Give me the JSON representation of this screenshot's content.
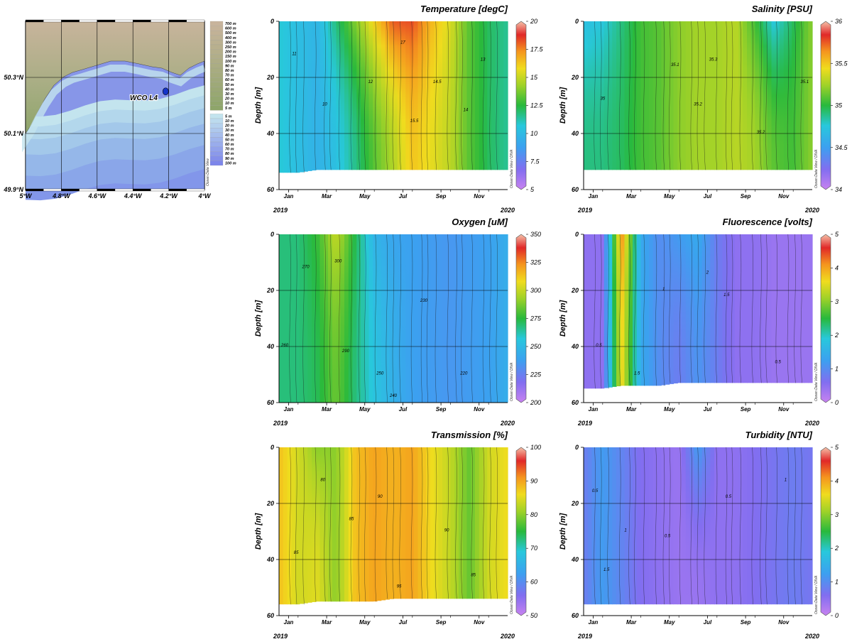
{
  "credit": "Ocean Data View",
  "map": {
    "lat_labels": [
      "50.3°N",
      "50.1°N",
      "49.9°N"
    ],
    "lon_labels": [
      "5°W",
      "4.8°W",
      "4.6°W",
      "4.4°W",
      "4.2°W",
      "4°W"
    ],
    "lat_values": [
      50.3,
      50.1,
      49.9
    ],
    "lon_values": [
      -5.0,
      -4.8,
      -4.6,
      -4.4,
      -4.2,
      -4.0
    ],
    "lat_range": [
      49.9,
      50.5
    ],
    "lon_range": [
      -5.0,
      -4.0
    ],
    "station": {
      "name": "WCO L4",
      "lon": -4.217,
      "lat": 50.25
    },
    "land_legend": [
      "700 m",
      "600 m",
      "500 m",
      "400 m",
      "300 m",
      "250 m",
      "200 m",
      "150 m",
      "100 m",
      "90 m",
      "80 m",
      "70 m",
      "60 m",
      "50 m",
      "40 m",
      "30 m",
      "20 m",
      "10 m",
      "5 m"
    ],
    "sea_legend": [
      "5 m",
      "10 m",
      "20 m",
      "30 m",
      "40 m",
      "50 m",
      "60 m",
      "70 m",
      "80 m",
      "90 m",
      "100 m"
    ],
    "colors": {
      "land_low": "#8ea56a",
      "land_high": "#c8b49c",
      "shelf": "#c3e4ee",
      "deep": "#7d86ea"
    }
  },
  "chart_data": [
    {
      "type": "heatmap",
      "title": "Temperature [degC]",
      "ylabel": "Depth [m]",
      "start_year": "2019",
      "end_year": "2020",
      "x_ticks": [
        "Jan",
        "Mar",
        "May",
        "Jul",
        "Sep",
        "Nov"
      ],
      "y_ticks": [
        "0",
        "20",
        "40",
        "60"
      ],
      "ylim": [
        60,
        0
      ],
      "colorbar": {
        "min": 5,
        "max": 20,
        "ticks": [
          "20",
          "17.5",
          "15",
          "12.5",
          "10",
          "7.5",
          "5"
        ]
      },
      "max_depth_by_month": [
        54,
        54,
        53,
        53,
        53,
        53,
        53,
        53,
        53,
        53,
        53,
        53,
        53
      ],
      "profile_by_month": [
        10.8,
        10.2,
        9.6,
        10.3,
        11.6,
        13.2,
        14.6,
        16.3,
        15.6,
        14.8,
        13.2,
        12.1,
        11.5
      ],
      "surface_bonus_by_month": [
        0,
        0,
        0.2,
        1.5,
        2.2,
        2.8,
        3.5,
        2.0,
        1.0,
        0.5,
        0,
        0,
        0
      ],
      "contour_labels": [
        {
          "m": 0.8,
          "d": 12,
          "v": "11"
        },
        {
          "m": 2.4,
          "d": 30,
          "v": "10"
        },
        {
          "m": 4.8,
          "d": 22,
          "v": "12"
        },
        {
          "m": 6.5,
          "d": 8,
          "v": "17"
        },
        {
          "m": 7.1,
          "d": 36,
          "v": "15.5"
        },
        {
          "m": 8.3,
          "d": 22,
          "v": "14.5"
        },
        {
          "m": 9.8,
          "d": 32,
          "v": "14"
        },
        {
          "m": 10.7,
          "d": 14,
          "v": "13"
        }
      ]
    },
    {
      "type": "heatmap",
      "title": "Salinity [PSU]",
      "ylabel": "Depth [m]",
      "start_year": "2019",
      "end_year": "2020",
      "x_ticks": [
        "Jan",
        "Mar",
        "May",
        "Jul",
        "Sep",
        "Nov"
      ],
      "y_ticks": [
        "0",
        "20",
        "40",
        "60"
      ],
      "ylim": [
        60,
        0
      ],
      "colorbar": {
        "min": 34,
        "max": 36,
        "ticks": [
          "36",
          "35.5",
          "35",
          "34.5",
          "34"
        ]
      },
      "max_depth_by_month": [
        53,
        53,
        53,
        53,
        53,
        53,
        53,
        53,
        53,
        53,
        53,
        53,
        53
      ],
      "profile_by_month": [
        34.9,
        34.9,
        34.95,
        35.05,
        35.1,
        35.2,
        35.25,
        35.25,
        35.3,
        35.25,
        35.1,
        35.05,
        35.2
      ],
      "surface_bonus_by_month": [
        -0.2,
        -0.15,
        -0.05,
        0,
        0,
        0,
        0,
        0,
        0,
        -0.2,
        -0.35,
        -0.1,
        0
      ],
      "contour_labels": [
        {
          "m": 1.0,
          "d": 28,
          "v": "35"
        },
        {
          "m": 4.8,
          "d": 16,
          "v": "35.1"
        },
        {
          "m": 6.0,
          "d": 30,
          "v": "35.2"
        },
        {
          "m": 6.8,
          "d": 14,
          "v": "35.3"
        },
        {
          "m": 9.3,
          "d": 40,
          "v": "35.2"
        },
        {
          "m": 11.6,
          "d": 22,
          "v": "35.1"
        }
      ]
    },
    {
      "type": "heatmap",
      "title": "Oxygen [uM]",
      "ylabel": "Depth [m]",
      "start_year": "2019",
      "end_year": "2020",
      "x_ticks": [
        "Jan",
        "Mar",
        "May",
        "Jul",
        "Sep",
        "Nov"
      ],
      "y_ticks": [
        "0",
        "20",
        "40",
        "60"
      ],
      "ylim": [
        60,
        0
      ],
      "colorbar": {
        "min": 200,
        "max": 350,
        "ticks": [
          "350",
          "325",
          "300",
          "275",
          "250",
          "225",
          "200"
        ]
      },
      "max_depth_by_month": [
        60,
        60,
        60,
        60,
        60,
        60,
        60,
        60,
        60,
        60,
        60,
        60,
        60
      ],
      "profile_by_month": [
        268,
        268,
        272,
        285,
        268,
        255,
        245,
        238,
        236,
        234,
        236,
        238,
        244
      ],
      "surface_bonus_by_month": [
        0,
        0,
        5,
        15,
        5,
        -8,
        -5,
        0,
        0,
        0,
        0,
        0,
        0
      ],
      "contour_labels": [
        {
          "m": 0.3,
          "d": 40,
          "v": "260"
        },
        {
          "m": 1.4,
          "d": 12,
          "v": "270"
        },
        {
          "m": 3.1,
          "d": 10,
          "v": "300"
        },
        {
          "m": 3.5,
          "d": 42,
          "v": "290"
        },
        {
          "m": 5.3,
          "d": 50,
          "v": "250"
        },
        {
          "m": 6.0,
          "d": 58,
          "v": "240"
        },
        {
          "m": 7.6,
          "d": 24,
          "v": "230"
        },
        {
          "m": 9.7,
          "d": 50,
          "v": "220"
        }
      ]
    },
    {
      "type": "heatmap",
      "title": "Fluorescence [volts]",
      "ylabel": "Depth [m]",
      "start_year": "2019",
      "end_year": "2020",
      "x_ticks": [
        "Jan",
        "Mar",
        "May",
        "Jul",
        "Sep",
        "Nov"
      ],
      "y_ticks": [
        "0",
        "20",
        "40",
        "60"
      ],
      "ylim": [
        60,
        0
      ],
      "colorbar": {
        "min": 0,
        "max": 5,
        "ticks": [
          "5",
          "4",
          "3",
          "2",
          "1",
          "0"
        ]
      },
      "max_depth_by_month": [
        55,
        55,
        54,
        54,
        54,
        53,
        53,
        53,
        53,
        53,
        53,
        53,
        53
      ],
      "profile_by_month": [
        0.5,
        0.5,
        3.6,
        1.4,
        1.0,
        0.8,
        1.1,
        0.8,
        0.5,
        0.5,
        0.4,
        0.4,
        0.4
      ],
      "surface_bonus_by_month": [
        0,
        0,
        0.5,
        0,
        0,
        0.4,
        0.3,
        0,
        0,
        0,
        0,
        0,
        0
      ],
      "contour_labels": [
        {
          "m": 0.8,
          "d": 40,
          "v": "0.5"
        },
        {
          "m": 2.8,
          "d": 50,
          "v": "1.5"
        },
        {
          "m": 4.2,
          "d": 20,
          "v": "1"
        },
        {
          "m": 6.5,
          "d": 14,
          "v": "2"
        },
        {
          "m": 7.5,
          "d": 22,
          "v": "1.5"
        },
        {
          "m": 10.2,
          "d": 46,
          "v": "0.5"
        }
      ]
    },
    {
      "type": "heatmap",
      "title": "Transmission [%]",
      "ylabel": "Depth [m]",
      "start_year": "2019",
      "end_year": "2020",
      "x_ticks": [
        "Jan",
        "Mar",
        "May",
        "Jul",
        "Sep",
        "Nov"
      ],
      "y_ticks": [
        "0",
        "20",
        "40",
        "60"
      ],
      "ylim": [
        60,
        0
      ],
      "colorbar": {
        "min": 50,
        "max": 100,
        "ticks": [
          "100",
          "90",
          "80",
          "70",
          "60",
          "50"
        ]
      },
      "max_depth_by_month": [
        56,
        56,
        55,
        55,
        55,
        55,
        54,
        54,
        54,
        54,
        54,
        54,
        54
      ],
      "profile_by_month": [
        88,
        84,
        85,
        80,
        88,
        90,
        89,
        90,
        86,
        83,
        78,
        84,
        86
      ],
      "surface_bonus_by_month": [
        0,
        0,
        -5,
        0,
        0,
        0,
        0,
        0,
        0,
        0,
        0,
        0,
        0
      ],
      "contour_labels": [
        {
          "m": 0.9,
          "d": 38,
          "v": "85"
        },
        {
          "m": 2.3,
          "d": 12,
          "v": "80"
        },
        {
          "m": 3.8,
          "d": 26,
          "v": "85"
        },
        {
          "m": 5.3,
          "d": 18,
          "v": "90"
        },
        {
          "m": 6.3,
          "d": 50,
          "v": "95"
        },
        {
          "m": 8.8,
          "d": 30,
          "v": "90"
        },
        {
          "m": 10.2,
          "d": 46,
          "v": "85"
        }
      ]
    },
    {
      "type": "heatmap",
      "title": "Turbidity [NTU]",
      "ylabel": "Depth [m]",
      "start_year": "2019",
      "end_year": "2020",
      "x_ticks": [
        "Jan",
        "Mar",
        "May",
        "Jul",
        "Sep",
        "Nov"
      ],
      "y_ticks": [
        "0",
        "20",
        "40",
        "60"
      ],
      "ylim": [
        60,
        0
      ],
      "colorbar": {
        "min": 0,
        "max": 5,
        "ticks": [
          "5",
          "4",
          "3",
          "2",
          "1",
          "0"
        ]
      },
      "max_depth_by_month": [
        56,
        56,
        56,
        56,
        56,
        56,
        56,
        56,
        56,
        56,
        56,
        56,
        56
      ],
      "profile_by_month": [
        0.8,
        1.2,
        0.9,
        0.6,
        0.5,
        0.4,
        0.4,
        0.5,
        0.5,
        0.6,
        0.7,
        0.8,
        0.7
      ],
      "surface_bonus_by_month": [
        0,
        0,
        0,
        0,
        0,
        0,
        0.8,
        0,
        0,
        0,
        0,
        0,
        0
      ],
      "contour_labels": [
        {
          "m": 0.6,
          "d": 16,
          "v": "0.5"
        },
        {
          "m": 1.2,
          "d": 44,
          "v": "1.5"
        },
        {
          "m": 2.2,
          "d": 30,
          "v": "1"
        },
        {
          "m": 4.4,
          "d": 32,
          "v": "0.5"
        },
        {
          "m": 7.6,
          "d": 18,
          "v": "0.5"
        },
        {
          "m": 10.6,
          "d": 12,
          "v": "1"
        }
      ]
    }
  ]
}
